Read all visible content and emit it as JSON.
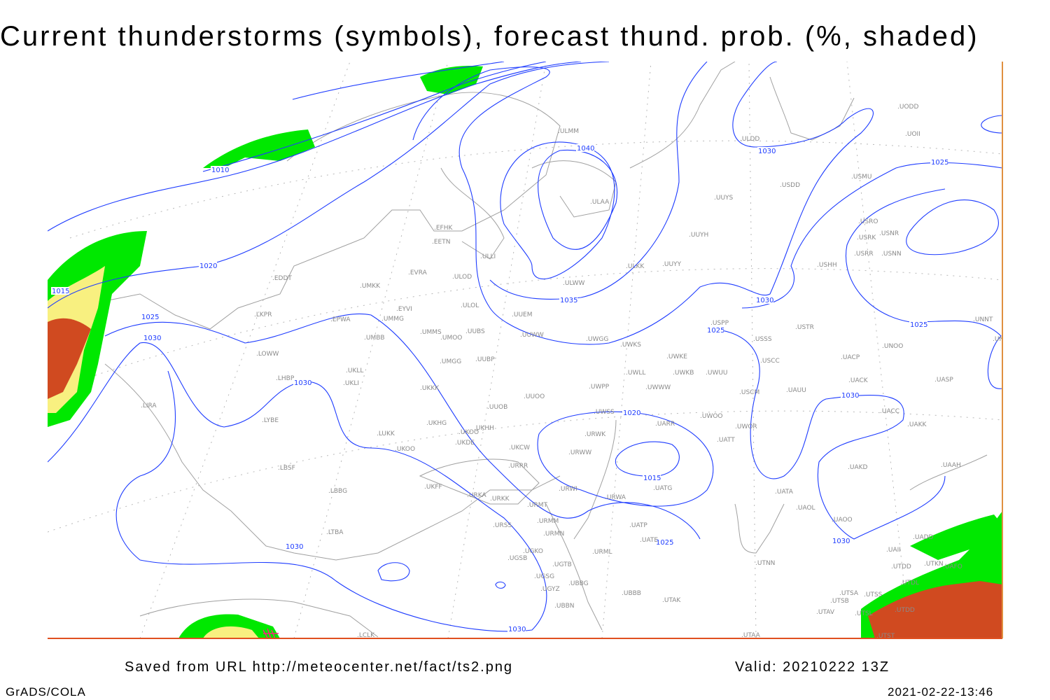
{
  "title": "Current thunderstorms (symbols), forecast thund. prob. (%, shaded)",
  "footer": {
    "saved_from": "Saved from URL http://meteocenter.net/fact/ts2.png",
    "valid": "Valid: 20210222 13Z",
    "software": "GrADS/COLA",
    "timestamp": "2021-02-22-13:46"
  },
  "colors": {
    "isobar": "#1e3cff",
    "coast": "#a0a0a0",
    "prob_low": "#00e800",
    "prob_mid": "#f8f080",
    "prob_high": "#d04a20",
    "symbol": "#ff2080"
  },
  "isobar_labels": [
    "1010",
    "1015",
    "1020",
    "1025",
    "1030",
    "1030",
    "1040",
    "1035",
    "1030",
    "1025",
    "1030",
    "1025",
    "1025",
    "1030",
    "1020",
    "1015",
    "1025",
    "1030",
    "1030",
    "1030"
  ],
  "stations": [
    "ULMM",
    "ULDD",
    "UODD",
    "UOII",
    "USDD",
    "USMU",
    "UUYS",
    "ULAA",
    "USRO",
    "USRK",
    "USNR",
    "USRR",
    "USNN",
    "EFHK",
    "EETN",
    "ULLI",
    "UUYH",
    "ULKK",
    "UUYY",
    "USHH",
    "EVRA",
    "ULOD",
    "EDDT",
    "ULWW",
    "UMKK",
    "ULOL",
    "EYVI",
    "UUEM",
    "LKPR",
    "EPWA",
    "UMMG",
    "UMMS",
    "UMOO",
    "UUBS",
    "UUWW",
    "UWGG",
    "UWKS",
    "UMBB",
    "USPP",
    "USTR",
    "USSS",
    "UNOO",
    "UNBB",
    "UNNT",
    "LOWW",
    "UKLL",
    "UMGG",
    "UUBP",
    "UWKE",
    "UWLL",
    "UWKB",
    "UWUU",
    "USCC",
    "UACP",
    "LHBP",
    "UKLI",
    "UWWW",
    "UWPP",
    "UKKK",
    "USCM",
    "UAUU",
    "UACK",
    "UASP",
    "LIRA",
    "LYBE",
    "UUOO",
    "UUOB",
    "UWSS",
    "UARR",
    "UWOO",
    "UWOR",
    "UACC",
    "UAKK",
    "UKHG",
    "UKOO",
    "UKHH",
    "UKDE",
    "LUKK",
    "UKOO",
    "URWK",
    "UATT",
    "UKCW",
    "URWW",
    "UAKD",
    "UAAH",
    "LBSF",
    "URRR",
    "URWI",
    "UATG",
    "UKFF",
    "URKA",
    "URKK",
    "URWA",
    "UATA",
    "UAOL",
    "LBBG",
    "URMT",
    "URMM",
    "URSS",
    "UATP",
    "UAOO",
    "URMN",
    "UATE",
    "LTBA",
    "UGKO",
    "UGSB",
    "URML",
    "UTNN",
    "UADD",
    "UAII",
    "UGTB",
    "UGSG",
    "UBBG",
    "UTDD",
    "UTKN",
    "UAFO",
    "UTDL",
    "UBBB",
    "UTAK",
    "UGYZ",
    "UBBN",
    "UTSA",
    "UTSS",
    "UTSB",
    "UTAV",
    "UTSL",
    "UTDD",
    "LCLK",
    "UTAA",
    "UTST"
  ]
}
